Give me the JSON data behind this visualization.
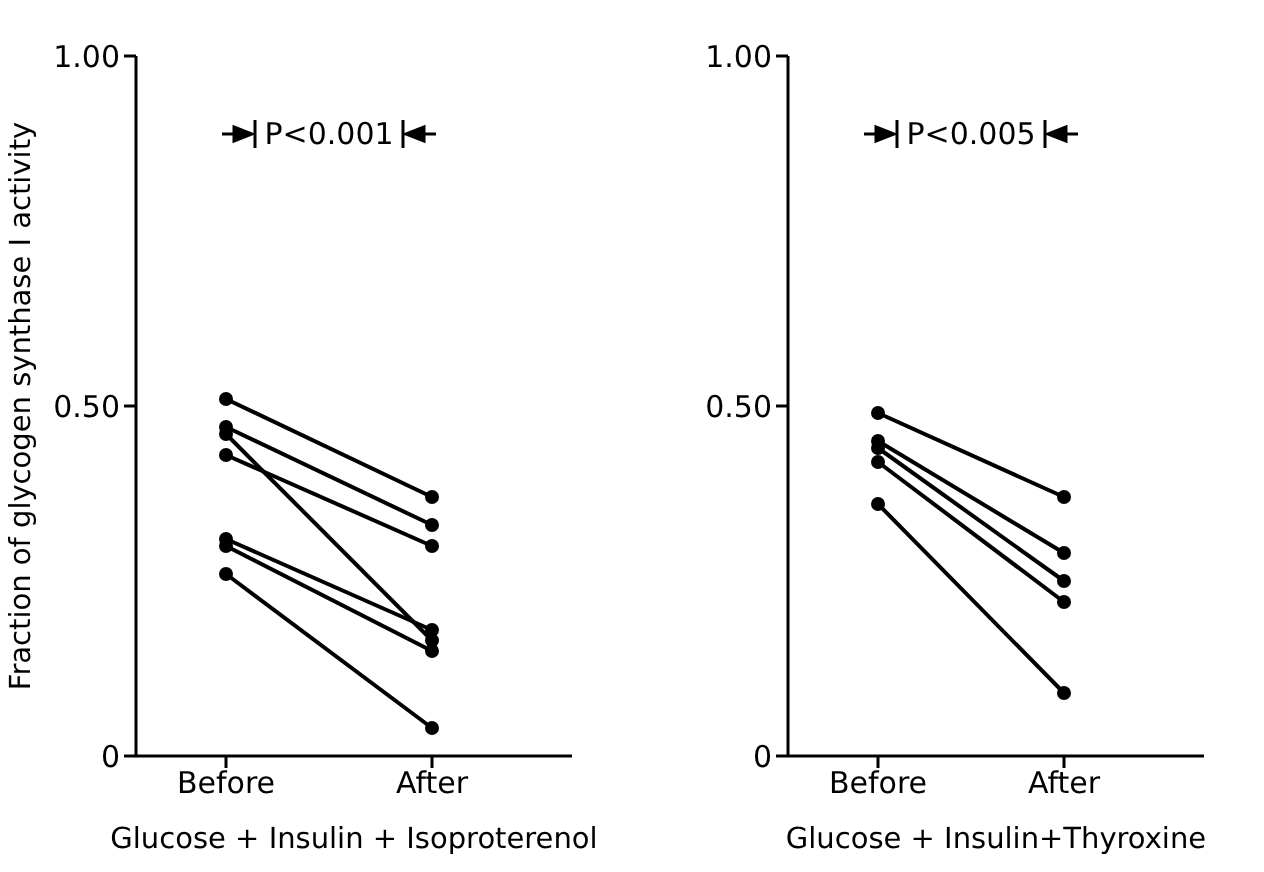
{
  "chart_data": [
    {
      "type": "line",
      "categories": [
        "Before",
        "After"
      ],
      "xlabel": "Glucose + Insulin + Isoproterenol",
      "ylabel": "Fraction of glycogen synthase I activity",
      "ylim": [
        0,
        1
      ],
      "yticks": [
        {
          "value": 0,
          "label": "0"
        },
        {
          "value": 0.5,
          "label": "0.50"
        },
        {
          "value": 1,
          "label": "1.00"
        }
      ],
      "marker": "circle",
      "line_style": "solid",
      "annotations": [
        "P<0.001"
      ],
      "series": [
        {
          "color": "#000000",
          "values": [
            0.51,
            0.37
          ]
        },
        {
          "color": "#000000",
          "values": [
            0.47,
            0.33
          ]
        },
        {
          "color": "#000000",
          "values": [
            0.46,
            0.165
          ]
        },
        {
          "color": "#000000",
          "values": [
            0.43,
            0.3
          ]
        },
        {
          "color": "#000000",
          "values": [
            0.31,
            0.18
          ]
        },
        {
          "color": "#000000",
          "values": [
            0.3,
            0.15
          ]
        },
        {
          "color": "#000000",
          "values": [
            0.26,
            0.04
          ]
        }
      ]
    },
    {
      "type": "line",
      "categories": [
        "Before",
        "After"
      ],
      "xlabel": "Glucose + Insulin+Thyroxine",
      "ylim": [
        0,
        1
      ],
      "yticks": [
        {
          "value": 0,
          "label": "0"
        },
        {
          "value": 0.5,
          "label": "0.50"
        },
        {
          "value": 1,
          "label": "1.00"
        }
      ],
      "marker": "circle",
      "line_style": "solid",
      "annotations": [
        "P<0.005"
      ],
      "series": [
        {
          "color": "#000000",
          "values": [
            0.49,
            0.37
          ]
        },
        {
          "color": "#000000",
          "values": [
            0.45,
            0.29
          ]
        },
        {
          "color": "#000000",
          "values": [
            0.44,
            0.25
          ]
        },
        {
          "color": "#000000",
          "values": [
            0.42,
            0.22
          ]
        },
        {
          "color": "#000000",
          "values": [
            0.36,
            0.09
          ]
        }
      ]
    }
  ]
}
